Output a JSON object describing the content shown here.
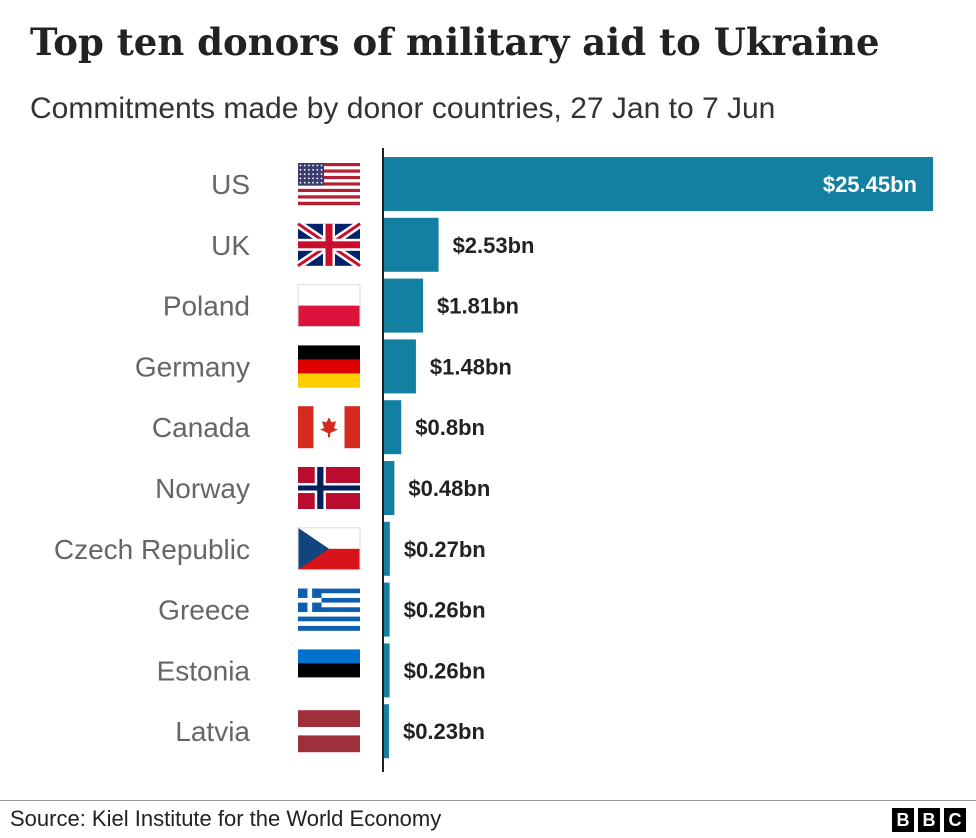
{
  "header": {
    "title": "Top ten donors of military aid to Ukraine",
    "subtitle": "Commitments made by donor countries, 27 Jan to 7 Jun"
  },
  "footer": {
    "source": "Source: Kiel Institute for the World Economy",
    "logo_letters": [
      "B",
      "B",
      "C"
    ]
  },
  "colors": {
    "bar": "#1380a1",
    "axis": "#222222",
    "label_inside": "#ffffff",
    "label_outside": "#222222"
  },
  "chart_data": {
    "type": "bar",
    "orientation": "horizontal",
    "title": "Top ten donors of military aid to Ukraine",
    "subtitle": "Commitments made by donor countries, 27 Jan to 7 Jun",
    "categories": [
      "US",
      "UK",
      "Poland",
      "Germany",
      "Canada",
      "Norway",
      "Czech Republic",
      "Greece",
      "Estonia",
      "Latvia"
    ],
    "values": [
      25.45,
      2.53,
      1.81,
      1.48,
      0.8,
      0.48,
      0.27,
      0.26,
      0.26,
      0.23
    ],
    "value_labels": [
      "$25.45bn",
      "$2.53bn",
      "$1.81bn",
      "$1.48bn",
      "$0.8bn",
      "$0.48bn",
      "$0.27bn",
      "$0.26bn",
      "$0.26bn",
      "$0.23bn"
    ],
    "flags": [
      "us-flag-icon",
      "uk-flag-icon",
      "poland-flag-icon",
      "germany-flag-icon",
      "canada-flag-icon",
      "norway-flag-icon",
      "czech-republic-flag-icon",
      "greece-flag-icon",
      "estonia-flag-icon",
      "latvia-flag-icon"
    ],
    "xlim": [
      0,
      25.45
    ],
    "grid": false,
    "legend": "none"
  }
}
